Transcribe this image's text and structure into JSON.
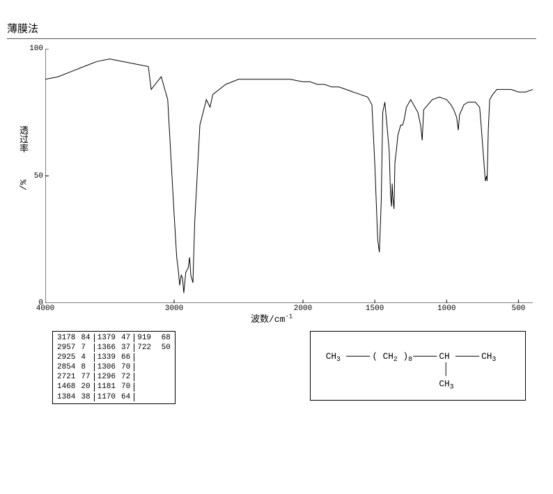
{
  "title": "薄膜法",
  "chart": {
    "type": "line",
    "xlabel": "波数/cm",
    "xlabel_sup": "-1",
    "ylabel": "透过率",
    "ylabel_unit": "/%",
    "xlim": [
      4000,
      400
    ],
    "ylim": [
      0,
      100
    ],
    "yticks": [
      0,
      50,
      100
    ],
    "xticks": [
      4000,
      3000,
      2000,
      1500,
      1000,
      500
    ],
    "line_color": "#000000",
    "axis_color": "#000000",
    "background_color": "#ffffff",
    "line_width": 1,
    "font_size_axis": 11,
    "font_size_label": 13,
    "data": [
      [
        4000,
        88
      ],
      [
        3900,
        89
      ],
      [
        3800,
        91
      ],
      [
        3700,
        93
      ],
      [
        3600,
        95
      ],
      [
        3500,
        96
      ],
      [
        3400,
        95
      ],
      [
        3300,
        94
      ],
      [
        3200,
        93
      ],
      [
        3178,
        84
      ],
      [
        3100,
        89
      ],
      [
        3050,
        80
      ],
      [
        3000,
        35
      ],
      [
        2980,
        18
      ],
      [
        2970,
        14
      ],
      [
        2957,
        7
      ],
      [
        2945,
        11
      ],
      [
        2935,
        10
      ],
      [
        2925,
        4
      ],
      [
        2910,
        12
      ],
      [
        2890,
        14
      ],
      [
        2880,
        18
      ],
      [
        2870,
        11
      ],
      [
        2854,
        8
      ],
      [
        2840,
        32
      ],
      [
        2800,
        70
      ],
      [
        2750,
        80
      ],
      [
        2721,
        77
      ],
      [
        2700,
        82
      ],
      [
        2600,
        86
      ],
      [
        2500,
        88
      ],
      [
        2400,
        88
      ],
      [
        2300,
        88
      ],
      [
        2200,
        88
      ],
      [
        2100,
        88
      ],
      [
        2000,
        87
      ],
      [
        1950,
        87
      ],
      [
        1900,
        86
      ],
      [
        1850,
        86
      ],
      [
        1800,
        85
      ],
      [
        1750,
        85
      ],
      [
        1700,
        84
      ],
      [
        1650,
        83
      ],
      [
        1600,
        82
      ],
      [
        1550,
        81
      ],
      [
        1520,
        78
      ],
      [
        1500,
        55
      ],
      [
        1490,
        40
      ],
      [
        1480,
        25
      ],
      [
        1468,
        20
      ],
      [
        1455,
        40
      ],
      [
        1445,
        75
      ],
      [
        1430,
        79
      ],
      [
        1400,
        60
      ],
      [
        1390,
        42
      ],
      [
        1384,
        38
      ],
      [
        1379,
        47
      ],
      [
        1375,
        42
      ],
      [
        1366,
        37
      ],
      [
        1360,
        55
      ],
      [
        1350,
        60
      ],
      [
        1339,
        66
      ],
      [
        1320,
        70
      ],
      [
        1306,
        70
      ],
      [
        1296,
        72
      ],
      [
        1280,
        77
      ],
      [
        1250,
        80
      ],
      [
        1200,
        75
      ],
      [
        1181,
        70
      ],
      [
        1170,
        64
      ],
      [
        1160,
        76
      ],
      [
        1100,
        80
      ],
      [
        1050,
        81
      ],
      [
        1000,
        80
      ],
      [
        970,
        78
      ],
      [
        950,
        76
      ],
      [
        930,
        73
      ],
      [
        919,
        68
      ],
      [
        910,
        74
      ],
      [
        880,
        78
      ],
      [
        850,
        79
      ],
      [
        800,
        79
      ],
      [
        770,
        77
      ],
      [
        760,
        70
      ],
      [
        740,
        55
      ],
      [
        730,
        48
      ],
      [
        722,
        50
      ],
      [
        718,
        48
      ],
      [
        710,
        68
      ],
      [
        700,
        80
      ],
      [
        680,
        82
      ],
      [
        650,
        84
      ],
      [
        600,
        84
      ],
      [
        550,
        84
      ],
      [
        500,
        83
      ],
      [
        450,
        83
      ],
      [
        400,
        84
      ]
    ]
  },
  "peak_table": {
    "columns": [
      [
        [
          3178,
          84
        ],
        [
          2957,
          7
        ],
        [
          2925,
          4
        ],
        [
          2854,
          8
        ],
        [
          2721,
          77
        ],
        [
          1468,
          20
        ],
        [
          1384,
          38
        ]
      ],
      [
        [
          1379,
          47
        ],
        [
          1366,
          37
        ],
        [
          1339,
          66
        ],
        [
          1306,
          70
        ],
        [
          1296,
          72
        ],
        [
          1181,
          70
        ],
        [
          1170,
          64
        ]
      ],
      [
        [
          919,
          68
        ],
        [
          722,
          50
        ]
      ]
    ],
    "font_family": "Courier New",
    "font_size": 11,
    "border_color": "#000000"
  },
  "structure": {
    "labels": {
      "ch3_left": "CH",
      "sub_3": "3",
      "ch2": "( CH",
      "sub_2": "2",
      "paren_close": ")",
      "sub_8": "8",
      "ch": "CH",
      "ch3_right": "CH",
      "ch3_bottom": "CH"
    },
    "font_size": 13,
    "line_color": "#000000"
  }
}
